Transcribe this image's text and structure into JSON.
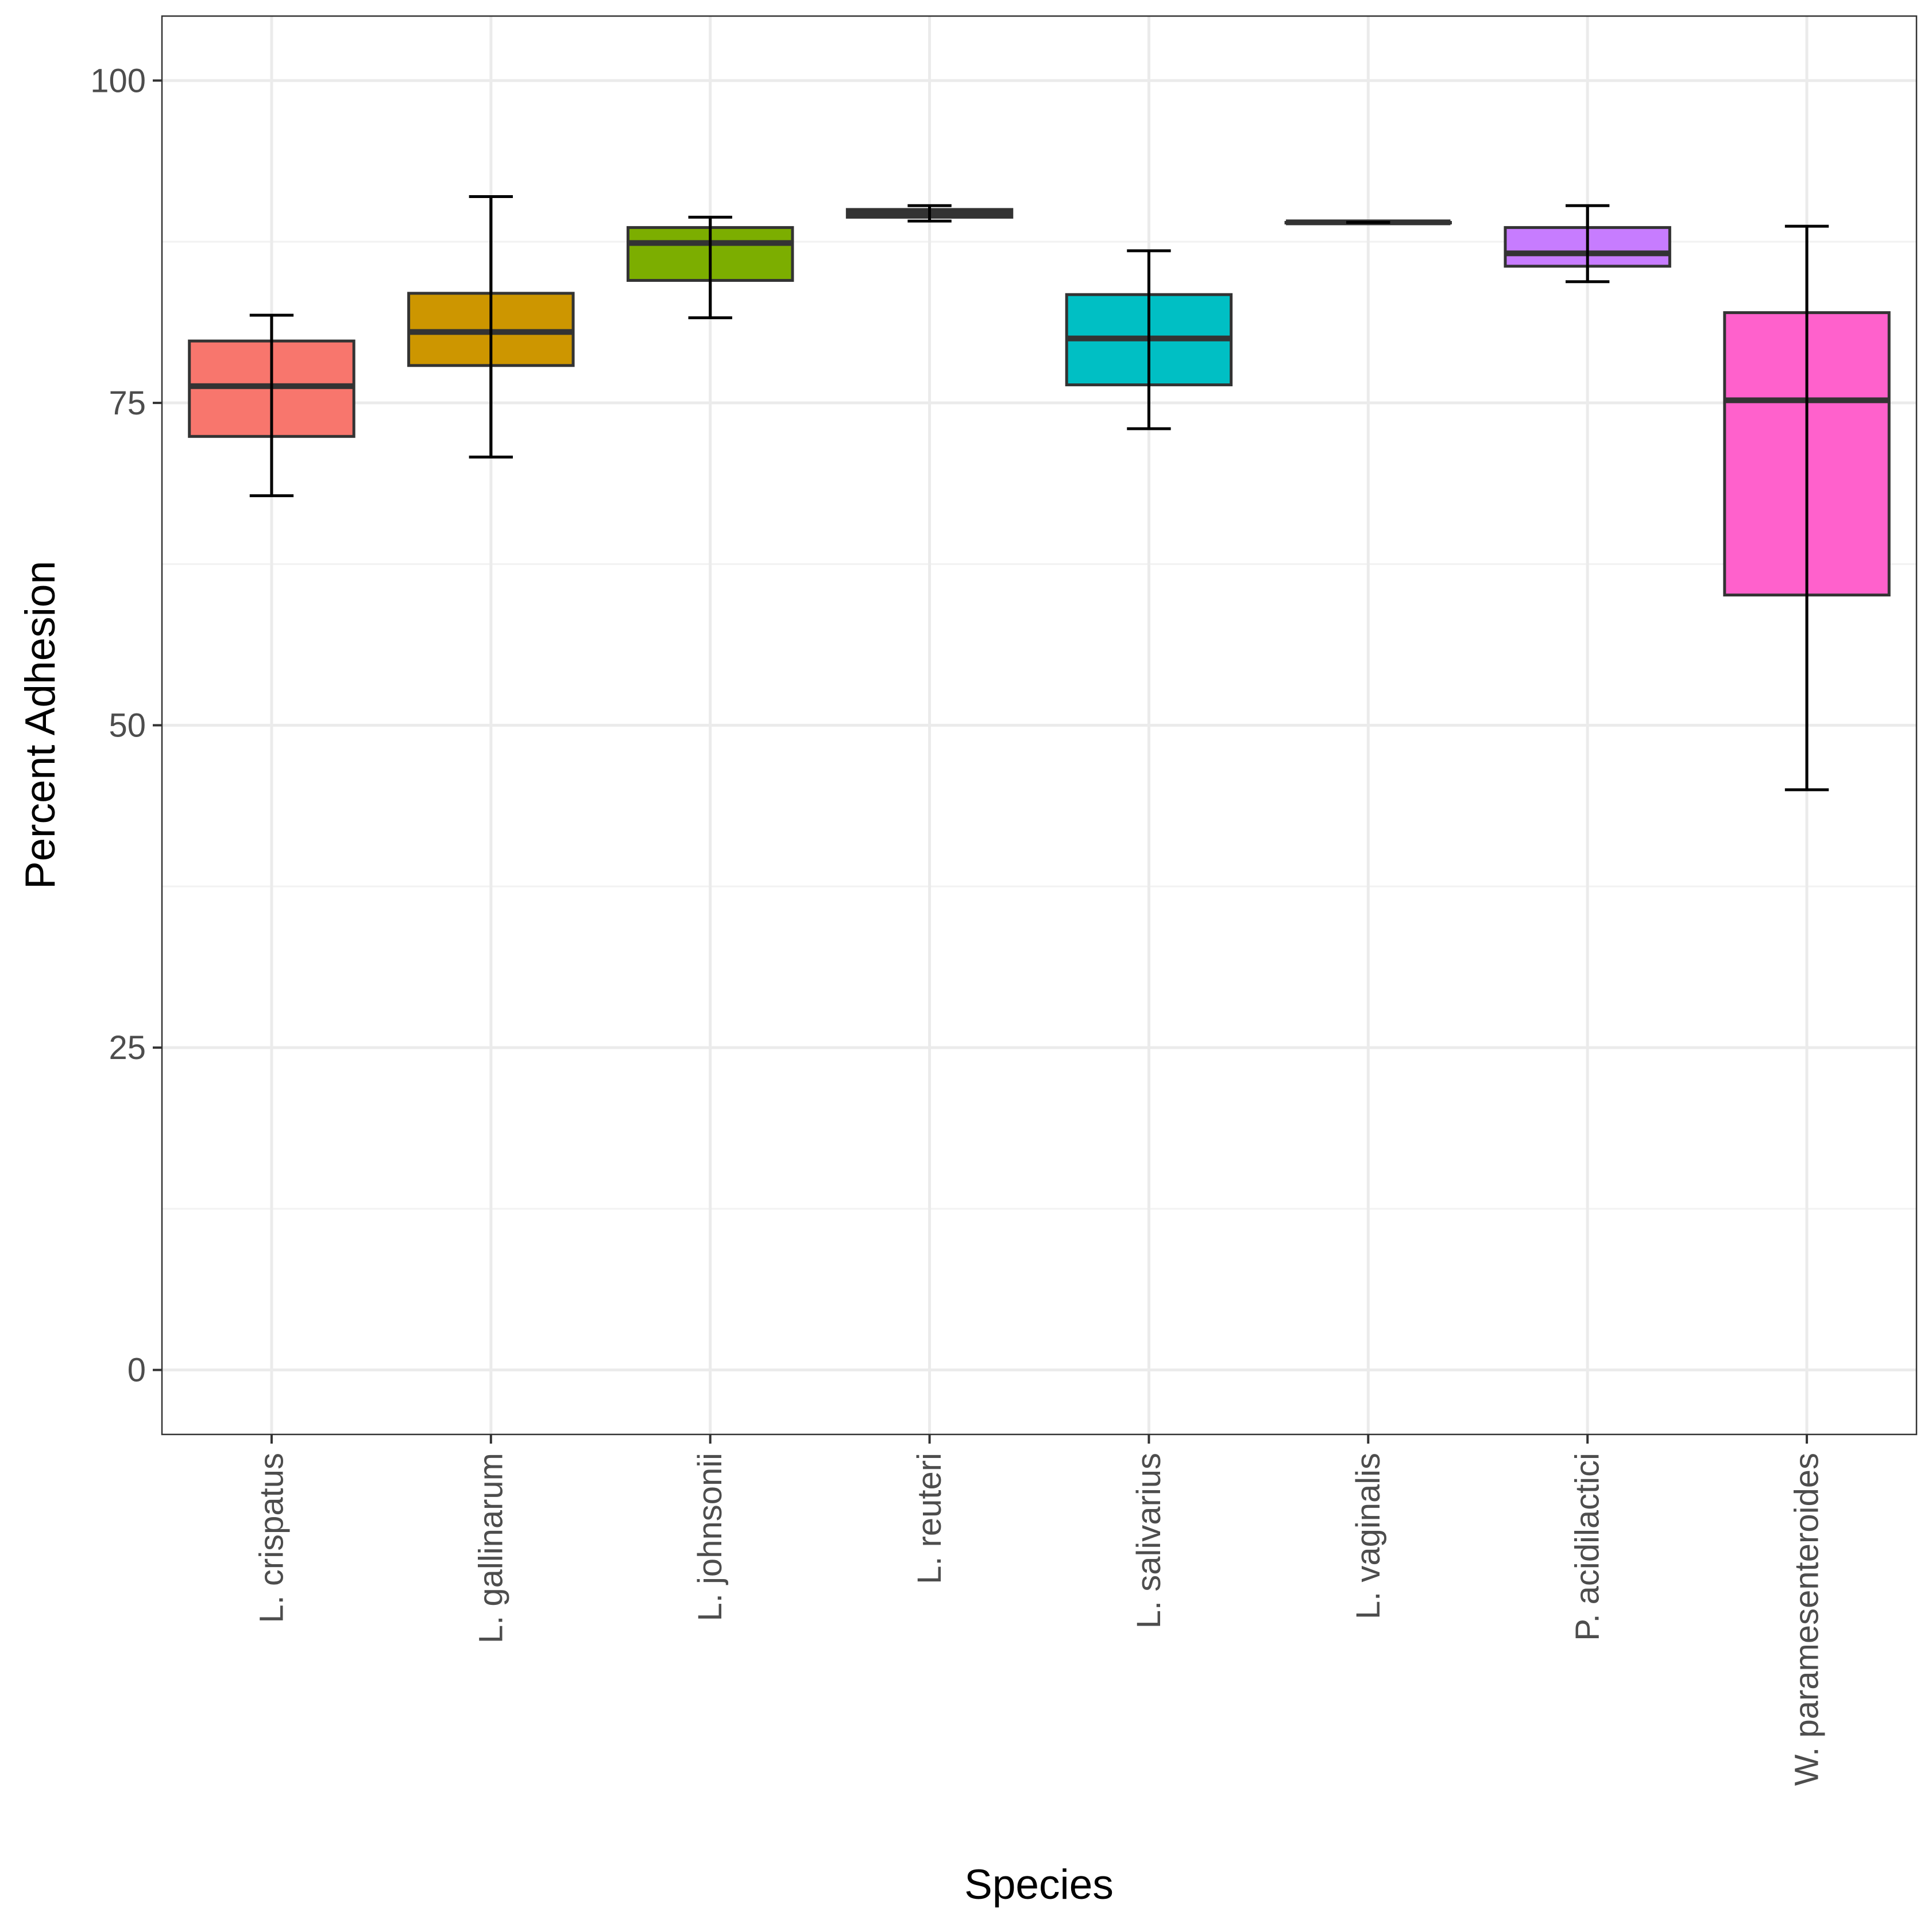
{
  "chart_data": {
    "type": "boxplot",
    "title": "",
    "xlabel": "Species",
    "ylabel": "Percent Adhesion",
    "ylim": [
      -5,
      105
    ],
    "yticks": [
      0,
      25,
      50,
      75,
      100
    ],
    "ytick_labels": [
      "0",
      "25",
      "50",
      "75",
      "100"
    ],
    "grid": true,
    "legend": "none",
    "categories": [
      "L. crispatus",
      "L. gallinarum",
      "L. johnsonii",
      "L. reuteri",
      "L. salivarius",
      "L. vaginalis",
      "P. acidilactici",
      "W. paramesenteroides"
    ],
    "series": [
      {
        "name": "L. crispatus",
        "color": "#F8766D",
        "whisker_low": 67.8,
        "q1": 72.4,
        "median": 76.3,
        "q3": 79.8,
        "whisker_high": 81.8
      },
      {
        "name": "L. gallinarum",
        "color": "#CD9600",
        "whisker_low": 70.8,
        "q1": 77.9,
        "median": 80.5,
        "q3": 83.5,
        "whisker_high": 91.0
      },
      {
        "name": "L. johnsonii",
        "color": "#7CAE00",
        "whisker_low": 81.6,
        "q1": 84.5,
        "median": 87.4,
        "q3": 88.6,
        "whisker_high": 89.4
      },
      {
        "name": "L. reuteri",
        "color": "#00BE67",
        "whisker_low": 89.1,
        "q1": 89.4,
        "median": 89.7,
        "q3": 90.0,
        "whisker_high": 90.3
      },
      {
        "name": "L. salivarius",
        "color": "#00BFC4",
        "whisker_low": 73.0,
        "q1": 76.4,
        "median": 80.0,
        "q3": 83.4,
        "whisker_high": 86.8
      },
      {
        "name": "L. vaginalis",
        "color": "#00A9FF",
        "whisker_low": 89.0,
        "q1": 89.0,
        "median": 89.0,
        "q3": 89.0,
        "whisker_high": 89.0
      },
      {
        "name": "P. acidilactici",
        "color": "#C77CFF",
        "whisker_low": 84.4,
        "q1": 85.6,
        "median": 86.6,
        "q3": 88.6,
        "whisker_high": 90.3
      },
      {
        "name": "W. paramesenteroides",
        "color": "#FF61CC",
        "whisker_low": 45.0,
        "q1": 60.1,
        "median": 75.2,
        "q3": 82.0,
        "whisker_high": 88.7
      }
    ]
  }
}
